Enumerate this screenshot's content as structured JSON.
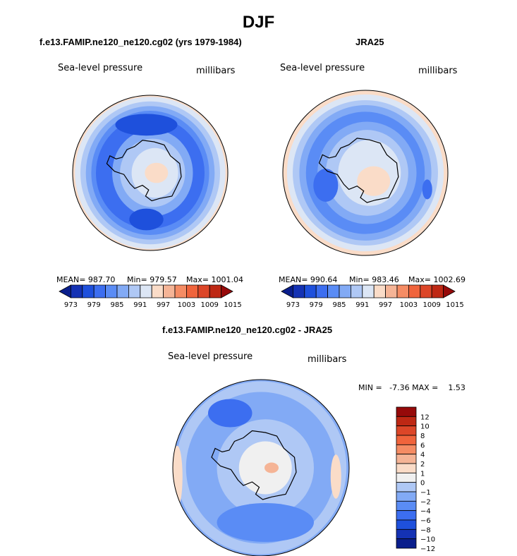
{
  "title": "DJF",
  "chart_data": [
    {
      "type": "heatmap",
      "title": "f.e13.FAMIP.ne120_ne120.cg02 (yrs 1979-1984)",
      "variable": "Sea-level pressure",
      "units": "millibars",
      "projection": "south-polar stereographic",
      "stats": {
        "mean_label": "MEAN= 987.70",
        "min_label": "Min= 979.57",
        "max_label": "Max= 1001.04"
      },
      "mean": 987.7,
      "min": 979.57,
      "max": 1001.04,
      "levels": [
        973,
        976,
        979,
        982,
        985,
        988,
        991,
        994,
        997,
        1000,
        1003,
        1006,
        1009,
        1012,
        1015
      ],
      "colorbar_labels": [
        "973",
        "979",
        "985",
        "991",
        "997",
        "1003",
        "1009",
        "1015"
      ]
    },
    {
      "type": "heatmap",
      "title": "JRA25",
      "variable": "Sea-level pressure",
      "units": "millibars",
      "projection": "south-polar stereographic",
      "stats": {
        "mean_label": "MEAN= 990.64",
        "min_label": "Min= 983.46",
        "max_label": "Max= 1002.69"
      },
      "mean": 990.64,
      "min": 983.46,
      "max": 1002.69,
      "levels": [
        973,
        976,
        979,
        982,
        985,
        988,
        991,
        994,
        997,
        1000,
        1003,
        1006,
        1009,
        1012,
        1015
      ],
      "colorbar_labels": [
        "973",
        "979",
        "985",
        "991",
        "997",
        "1003",
        "1009",
        "1015"
      ]
    },
    {
      "type": "heatmap",
      "title": "f.e13.FAMIP.ne120_ne120.cg02 - JRA25",
      "variable": "Sea-level pressure",
      "units": "millibars",
      "projection": "south-polar stereographic",
      "stats": {
        "min_max_label": "MIN =   -7.36 MAX =    1.53"
      },
      "min": -7.36,
      "max": 1.53,
      "levels": [
        -12,
        -10,
        -8,
        -6,
        -4,
        -2,
        -1,
        0,
        1,
        2,
        4,
        6,
        8,
        10,
        12
      ],
      "colorbar_labels": [
        "12",
        "10",
        "8",
        "6",
        "4",
        "2",
        "1",
        "0",
        "−1",
        "−2",
        "−4",
        "−6",
        "−8",
        "−10",
        "−12"
      ]
    }
  ],
  "colors": {
    "seq_palette": [
      "#0a1e8c",
      "#1432b4",
      "#1e50dc",
      "#3c6ef0",
      "#5a8cf5",
      "#82aaf5",
      "#afc8f5",
      "#dce6f5",
      "#fadcc8",
      "#f5b496",
      "#f58c64",
      "#f0643c",
      "#dc4628",
      "#be2814",
      "#960a0a"
    ],
    "diff_palette": [
      "#960a0a",
      "#be2814",
      "#dc4628",
      "#f0643c",
      "#f58c64",
      "#f5b496",
      "#fadcc8",
      "#f0f0f0",
      "#afc8f5",
      "#82aaf5",
      "#5a8cf5",
      "#3c6ef0",
      "#1e50dc",
      "#1432b4",
      "#0a1e8c"
    ],
    "land_outline": "#000000"
  }
}
